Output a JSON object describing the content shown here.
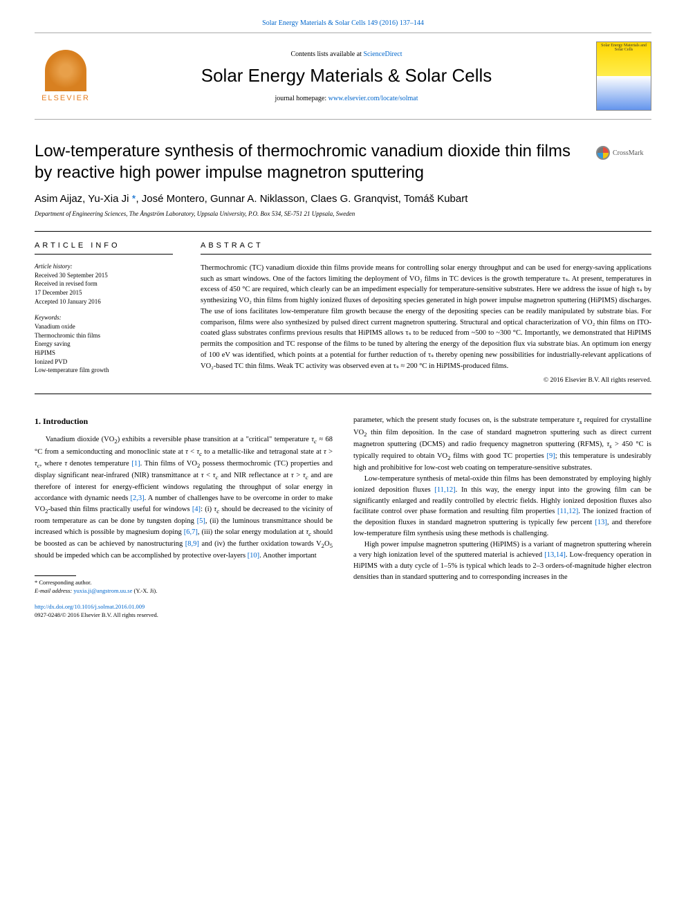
{
  "header": {
    "citation": "Solar Energy Materials & Solar Cells 149 (2016) 137–144",
    "contents_prefix": "Contents lists available at ",
    "contents_link": "ScienceDirect",
    "journal": "Solar Energy Materials & Solar Cells",
    "homepage_prefix": "journal homepage: ",
    "homepage_link": "www.elsevier.com/locate/solmat",
    "publisher_logo": "ELSEVIER",
    "cover_text": "Solar Energy Materials and Solar Cells"
  },
  "crossmark": "CrossMark",
  "title": "Low-temperature synthesis of thermochromic vanadium dioxide thin films by reactive high power impulse magnetron sputtering",
  "authors_html": "Asim Aijaz, Yu-Xia Ji *, José Montero, Gunnar A. Niklasson, Claes G. Granqvist, Tomáš Kubart",
  "affiliation": "Department of Engineering Sciences, The Ångström Laboratory, Uppsala University, P.O. Box 534, SE-751 21 Uppsala, Sweden",
  "info": {
    "heading": "ARTICLE INFO",
    "history_label": "Article history:",
    "history": "Received 30 September 2015\nReceived in revised form\n17 December 2015\nAccepted 10 January 2016",
    "keywords_label": "Keywords:",
    "keywords": "Vanadium oxide\nThermochromic thin films\nEnergy saving\nHiPIMS\nIonized PVD\nLow-temperature film growth"
  },
  "abstract": {
    "heading": "ABSTRACT",
    "text": "Thermochromic (TC) vanadium dioxide thin films provide means for controlling solar energy throughput and can be used for energy-saving applications such as smart windows. One of the factors limiting the deployment of VO₂ films in TC devices is the growth temperature τₛ. At present, temperatures in excess of 450 °C are required, which clearly can be an impediment especially for temperature-sensitive substrates. Here we address the issue of high τₛ by synthesizing VO₂ thin films from highly ionized fluxes of depositing species generated in high power impulse magnetron sputtering (HiPIMS) discharges. The use of ions facilitates low-temperature film growth because the energy of the depositing species can be readily manipulated by substrate bias. For comparison, films were also synthesized by pulsed direct current magnetron sputtering. Structural and optical characterization of VO₂ thin films on ITO-coated glass substrates confirms previous results that HiPIMS allows τₛ to be reduced from ~500 to ~300 °C. Importantly, we demonstrated that HiPIMS permits the composition and TC response of the films to be tuned by altering the energy of the deposition flux via substrate bias. An optimum ion energy of 100 eV was identified, which points at a potential for further reduction of τₛ thereby opening new possibilities for industrially-relevant applications of VO₂-based TC thin films. Weak TC activity was observed even at τₛ ≈ 200 °C in HiPIMS-produced films.",
    "copyright": "© 2016 Elsevier B.V. All rights reserved."
  },
  "body": {
    "section1_heading": "1. Introduction",
    "col1_p1": "Vanadium dioxide (VO₂) exhibits a reversible phase transition at a \"critical\" temperature τc ≈ 68 °C from a semiconducting and monoclinic state at τ < τc to a metallic-like and tetragonal state at τ > τc, where τ denotes temperature [1]. Thin films of VO₂ possess thermochromic (TC) properties and display significant near-infrared (NIR) transmittance at τ < τc and NIR reflectance at τ > τc and are therefore of interest for energy-efficient windows regulating the throughput of solar energy in accordance with dynamic needs [2,3]. A number of challenges have to be overcome in order to make VO₂-based thin films practically useful for windows [4]: (i) τc should be decreased to the vicinity of room temperature as can be done by tungsten doping [5], (ii) the luminous transmittance should be increased which is possible by magnesium doping [6,7], (iii) the solar energy modulation at τc should be boosted as can be achieved by nanostructuring [8,9] and (iv) the further oxidation towards V₂O₅ should be impeded which can be accomplished by protective over-layers [10]. Another important",
    "col2_p1": "parameter, which the present study focuses on, is the substrate temperature τₛ required for crystalline VO₂ thin film deposition. In the case of standard magnetron sputtering such as direct current magnetron sputtering (DCMS) and radio frequency magnetron sputtering (RFMS), τₛ > 450 °C is typically required to obtain VO₂ films with good TC properties [9]; this temperature is undesirably high and prohibitive for low-cost web coating on temperature-sensitive substrates.",
    "col2_p2": "Low-temperature synthesis of metal-oxide thin films has been demonstrated by employing highly ionized deposition fluxes [11,12]. In this way, the energy input into the growing film can be significantly enlarged and readily controlled by electric fields. Highly ionized deposition fluxes also facilitate control over phase formation and resulting film properties [11,12]. The ionized fraction of the deposition fluxes in standard magnetron sputtering is typically few percent [13], and therefore low-temperature film synthesis using these methods is challenging.",
    "col2_p3": "High power impulse magnetron sputtering (HiPIMS) is a variant of magnetron sputtering wherein a very high ionization level of the sputtered material is achieved [13,14]. Low-frequency operation in HiPIMS with a duty cycle of 1–5% is typical which leads to 2–3 orders-of-magnitude higher electron densities than in standard sputtering and to corresponding increases in the"
  },
  "footnote": {
    "corr": "* Corresponding author.",
    "email_label": "E-mail address: ",
    "email": "yuxia.ji@angstrom.uu.se",
    "email_paren": " (Y.-X. Ji)."
  },
  "doi": {
    "link": "http://dx.doi.org/10.1016/j.solmat.2016.01.009",
    "issn": "0927-0248/© 2016 Elsevier B.V. All rights reserved."
  },
  "colors": {
    "link": "#0066cc",
    "elsevier_orange": "#e67e22"
  }
}
